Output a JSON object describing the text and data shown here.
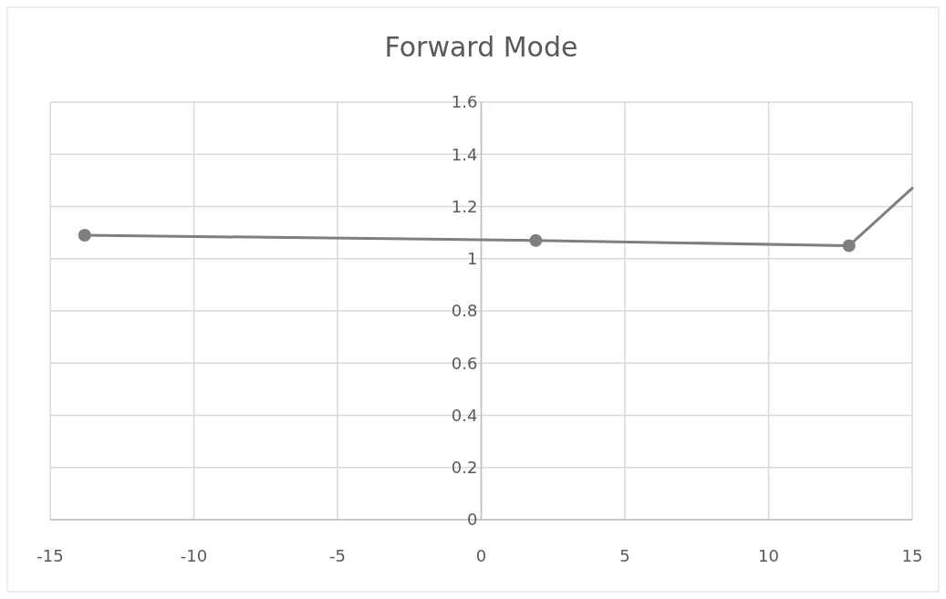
{
  "chart_data": {
    "type": "line",
    "title": "Forward Mode",
    "series": [
      {
        "color": "#7f7f7f",
        "x": [
          -13.8,
          1.9,
          12.8
        ],
        "values": [
          1.09,
          1.07,
          1.05
        ],
        "marker": "circle"
      },
      {
        "color": "#7f7f7f",
        "x": [
          12.8,
          15
        ],
        "values": [
          1.05,
          1.27
        ],
        "marker": "none"
      }
    ],
    "xlim": [
      -15,
      15
    ],
    "xticks": [
      -15,
      -10,
      -5,
      0,
      5,
      10,
      15
    ],
    "ylim": [
      0,
      1.6
    ],
    "yticks": [
      0,
      0.2,
      0.4,
      0.6,
      0.8,
      1,
      1.2,
      1.4,
      1.6
    ],
    "grid": true
  }
}
